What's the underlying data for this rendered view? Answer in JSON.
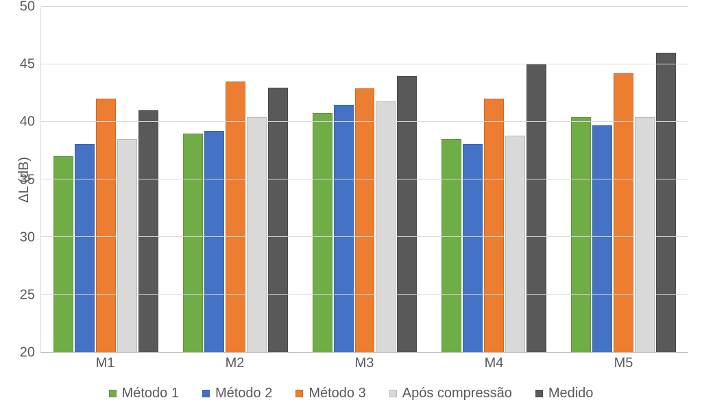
{
  "chart": {
    "type": "bar",
    "background_color": "#ffffff",
    "grid_color": "#d9d9d9",
    "axis_text_color": "#595959",
    "label_fontsize": 20,
    "tick_fontsize": 20,
    "legend_fontsize": 20,
    "ylabel": "ΔL (dB)",
    "ylim": [
      20,
      50
    ],
    "ytick_step": 5,
    "yticks": [
      20,
      25,
      30,
      35,
      40,
      45,
      50
    ],
    "categories": [
      "M1",
      "M2",
      "M3",
      "M4",
      "M5"
    ],
    "series": [
      {
        "name": "Método 1",
        "color": "#70ad47",
        "values": [
          37.0,
          39.0,
          40.8,
          38.5,
          40.4
        ]
      },
      {
        "name": "Método 2",
        "color": "#4472c4",
        "values": [
          38.1,
          39.2,
          41.5,
          38.1,
          39.7
        ]
      },
      {
        "name": "Método 3",
        "color": "#ed7d31",
        "values": [
          42.0,
          43.5,
          42.9,
          42.0,
          44.2
        ]
      },
      {
        "name": "Após compressão",
        "color": "#d9d9d9",
        "values": [
          38.5,
          40.4,
          41.8,
          38.8,
          40.4
        ]
      },
      {
        "name": "Medido",
        "color": "#595959",
        "values": [
          41.0,
          43.0,
          44.0,
          45.0,
          46.0
        ]
      }
    ]
  }
}
